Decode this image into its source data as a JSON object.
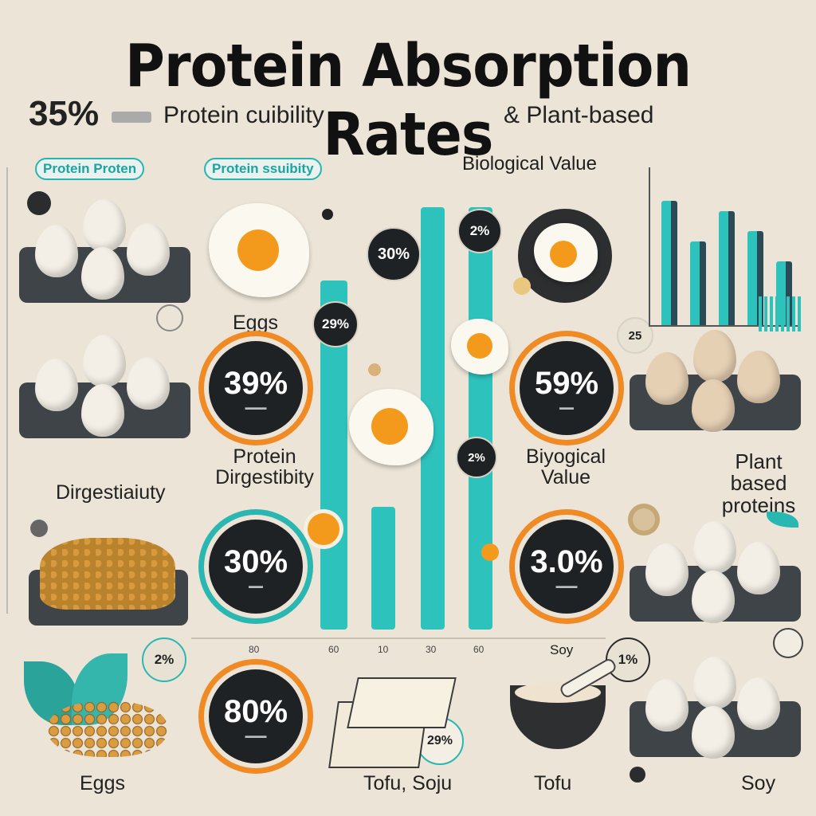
{
  "title": "Protein Absorption Rates",
  "subtitle": {
    "percent": "35%",
    "left_text": "Protein cuibility",
    "right_text": "& Plant-based"
  },
  "pills": [
    "Protein Proten",
    "Protein ssuibity"
  ],
  "biological_value_heading": "Biological Value",
  "rings": [
    {
      "value": "39%",
      "caption": "Protein Dirgestibity",
      "accent": "#f08a24"
    },
    {
      "value": "59%",
      "caption": "Biyogical Value",
      "accent": "#f08a24"
    },
    {
      "value": "30%",
      "caption": "",
      "accent": "#2ab7b1"
    },
    {
      "value": "3.0%",
      "caption": "",
      "accent": "#f08a24"
    },
    {
      "value": "80%",
      "caption": "",
      "accent": "#f08a24"
    }
  ],
  "badges": [
    "30%",
    "2%",
    "29%",
    "2%",
    "25",
    "2%",
    "1%",
    "29%"
  ],
  "labels": {
    "eggs_top": "Eggs",
    "digestibility": "Dirgestiaiuty",
    "plant_based": "Plant based proteins",
    "eggs_bottom": "Eggs",
    "tofu_soju": "Tofu, Soju",
    "tofu": "Tofu",
    "soy": "Soy",
    "soy_axis": "Soy"
  },
  "axis_ticks": [
    "80",
    "60",
    "10",
    "30",
    "60"
  ],
  "bar_chart": {
    "values": [
      0.82,
      0.55,
      0.75,
      0.62,
      0.42
    ],
    "colors": {
      "bar": "#2ec2bd",
      "dark": "#2a4a55"
    }
  },
  "colors": {
    "background": "#ece5d7",
    "teal": "#2ab7b1",
    "orange": "#f08a24",
    "dark": "#1f2224"
  }
}
